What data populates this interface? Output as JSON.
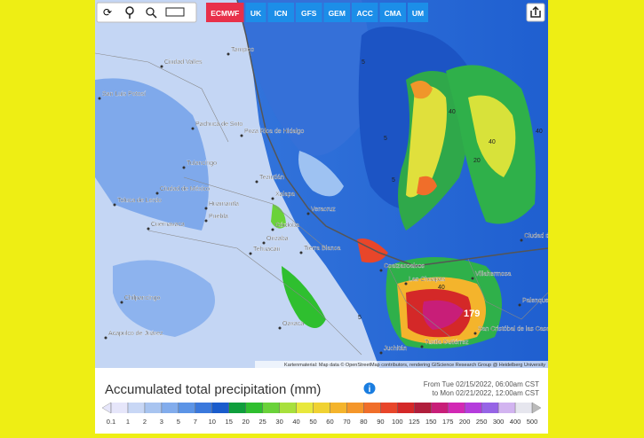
{
  "toolbar": {
    "models": [
      "ECMWF",
      "UK",
      "ICN",
      "GFS",
      "GEM",
      "ACC",
      "CMA",
      "UM"
    ],
    "active": "ECMWF"
  },
  "map": {
    "cities": [
      "Tampico",
      "Ciudad Valles",
      "San Luis Potosí",
      "Poza Rica de Hidalgo",
      "Pachuca de Soto",
      "Tulancingo",
      "Ciudad de México",
      "Toluca de Lerdo",
      "Cuernavaca",
      "Puebla",
      "Huamantla",
      "Teziutlán",
      "Xalapa",
      "Veracruz",
      "Córdoba",
      "Orizaba",
      "Tehuacán",
      "Tierra Blanca",
      "Coatzacoalcos",
      "Las Choapas",
      "Villahermosa",
      "Ciudad del Carmen",
      "Palenque",
      "Chilpancingo",
      "Acapulco de Juárez",
      "Oaxaca",
      "Tuxtla Gutiérrez",
      "San Cristóbal de las Casas",
      "Juchitán"
    ],
    "contours": [
      "5",
      "5",
      "40",
      "20",
      "40",
      "40",
      "5",
      "40",
      "5"
    ],
    "max_label": "179",
    "attribution": "Kartenmaterial: Map data © OpenStreetMap contributors, rendering GIScience Research Group @ Heidelberg University"
  },
  "footer": {
    "title": "Accumulated total precipitation (mm)",
    "from": "From Tue 02/15/2022, 06:00am CST",
    "to": "to Mon 02/21/2022, 12:00am CST"
  },
  "legend": {
    "labels": [
      "0.1",
      "1",
      "2",
      "3",
      "5",
      "7",
      "10",
      "15",
      "20",
      "25",
      "30",
      "40",
      "50",
      "60",
      "70",
      "80",
      "90",
      "100",
      "125",
      "150",
      "175",
      "200",
      "250",
      "300",
      "400",
      "500"
    ],
    "colors": [
      "#e6e6fa",
      "#c8d7f5",
      "#a8c4f0",
      "#82acec",
      "#5c94e6",
      "#3a78dc",
      "#1a5ccc",
      "#0f9e3c",
      "#2fbf2f",
      "#6ad23a",
      "#a8e03c",
      "#e8e83c",
      "#f0d232",
      "#f4b42c",
      "#f4962a",
      "#f06e2a",
      "#e8462a",
      "#d42828",
      "#b01e3c",
      "#c81e78",
      "#d228b4",
      "#b43cdc",
      "#9664e6",
      "#d2b4f0",
      "#e6e6ee"
    ]
  }
}
